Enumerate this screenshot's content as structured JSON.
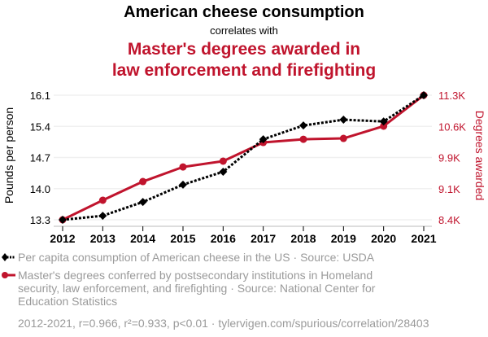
{
  "header": {
    "title": "American cheese consumption",
    "connector": "correlates with",
    "subtitle_line1": "Master's degrees awarded in",
    "subtitle_line2": "law enforcement and firefighting"
  },
  "colors": {
    "series1": "#000000",
    "series2": "#c0142d",
    "grid": "#f0f0f0",
    "muted_text": "#9a9a9a"
  },
  "chart_data": {
    "type": "line",
    "title": "American cheese consumption correlates with Master's degrees awarded in law enforcement and firefighting",
    "x": [
      2012,
      2013,
      2014,
      2015,
      2016,
      2017,
      2018,
      2019,
      2020,
      2021
    ],
    "xlabel": "",
    "x_tick_labels": [
      "2012",
      "2013",
      "2014",
      "2015",
      "2016",
      "2017",
      "2018",
      "2019",
      "2020",
      "2021"
    ],
    "y_left": {
      "label": "Pounds per person",
      "range": [
        13.3,
        16.1
      ],
      "ticks": [
        13.3,
        14.0,
        14.7,
        15.4,
        16.1
      ],
      "tick_labels": [
        "13.3",
        "14.0",
        "14.7",
        "15.4",
        "16.1"
      ]
    },
    "y_right": {
      "label": "Degrees awarded",
      "range": [
        8400,
        11300
      ],
      "ticks": [
        8400,
        9125,
        9850,
        10575,
        11300
      ],
      "tick_labels": [
        "8.4K",
        "9.1K",
        "9.9K",
        "10.6K",
        "11.3K"
      ]
    },
    "grid": true,
    "series": [
      {
        "name": "Per capita consumption of American cheese in the US · Source: USDA",
        "axis": "left",
        "style": "dotted",
        "marker": "diamond",
        "color": "#000000",
        "values": [
          13.3,
          13.39,
          13.7,
          14.09,
          14.38,
          15.11,
          15.42,
          15.55,
          15.51,
          16.1
        ]
      },
      {
        "name": "Master's degrees conferred by postsecondary institutions in Homeland security, law enforcement, and firefighting · Source: National Center for Education Statistics",
        "axis": "right",
        "style": "solid",
        "marker": "circle",
        "color": "#c0142d",
        "values": [
          8400,
          8855,
          9290,
          9630,
          9765,
          10200,
          10275,
          10295,
          10580,
          11300
        ]
      }
    ],
    "legend_position": "bottom-left"
  },
  "legend": {
    "item1": "Per capita consumption of American cheese in the US · Source: USDA",
    "item2": "Master's degrees conferred by postsecondary institutions in Homeland security, law enforcement, and firefighting · Source: National Center for Education Statistics"
  },
  "footer": {
    "stats": "2012-2021, r=0.966, r²=0.933, p<0.01 · tylervigen.com/spurious/correlation/28403"
  }
}
